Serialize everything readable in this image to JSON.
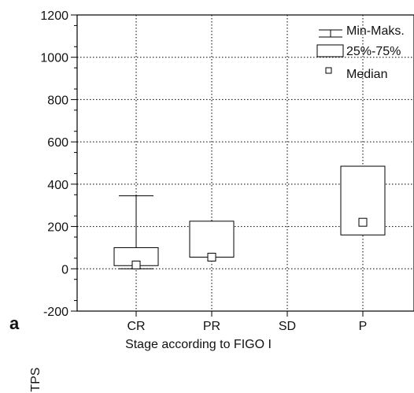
{
  "panel_label": "a",
  "chart_data": {
    "type": "box",
    "categories": [
      "CR",
      "PR",
      "SD",
      "P"
    ],
    "xlabel": "Stage according to FIGO I",
    "ylabel": "TPS",
    "ylim": [
      -200,
      1200
    ],
    "yticks": [
      -200,
      0,
      200,
      400,
      600,
      800,
      1000,
      1200
    ],
    "grid": true,
    "legend": {
      "position": "top-right",
      "minmax_label": "Min-Maks.",
      "box_label": "25%-75%",
      "median_label": "Median"
    },
    "boxes": [
      {
        "category": "CR",
        "min": 0,
        "q1": 15,
        "median": 18,
        "q3": 100,
        "max": 345
      },
      {
        "category": "PR",
        "min": 55,
        "q1": 55,
        "median": 55,
        "q3": 225,
        "max": 225
      },
      {
        "category": "SD",
        "min": null,
        "q1": null,
        "median": null,
        "q3": null,
        "max": null
      },
      {
        "category": "P",
        "min": 160,
        "q1": 160,
        "median": 220,
        "q3": 485,
        "max": 485
      }
    ]
  }
}
